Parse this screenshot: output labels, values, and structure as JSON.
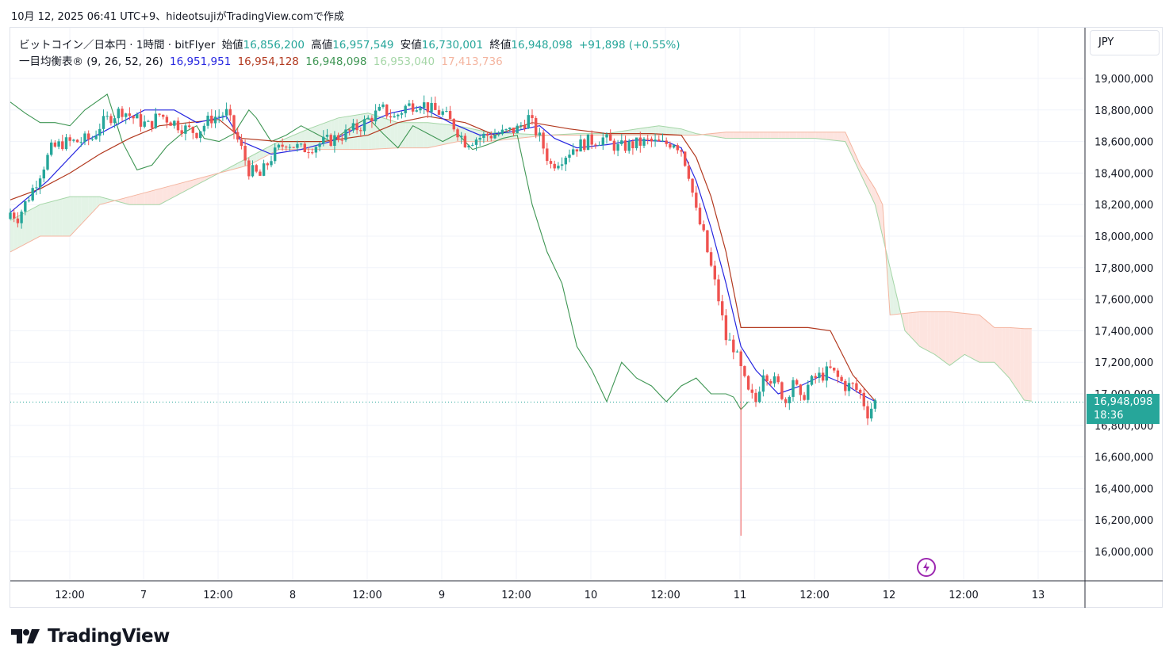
{
  "caption": "10月 12, 2025 06:41 UTC+9、hideotsujiがTradingView.comで作成",
  "legend": {
    "symbol": "ビットコイン／日本円 · 1時間 · bitFlyer",
    "open_label": "始値",
    "open": "16,856,200",
    "high_label": "高値",
    "high": "16,957,549",
    "low_label": "安値",
    "low": "16,730,001",
    "close_label": "終値",
    "close": "16,948,098",
    "change": "+91,898 (+0.55%)",
    "indicator": "一目均衡表® (9, 26, 52, 26)",
    "tenkan": "16,951,951",
    "kijun": "16,954,128",
    "chikou": "16,948,098",
    "senkou_a": "16,953,040",
    "senkou_b": "17,413,736"
  },
  "currency": "JPY",
  "last_price": {
    "price": "16,948,098",
    "countdown": "18:36"
  },
  "brand": "TradingView",
  "colors": {
    "up": "#26a69a",
    "down": "#ef5350",
    "tenkan": "#2727e0",
    "kijun": "#b2391f",
    "chikou": "#3f9654",
    "span_a": "#a5d6a7",
    "span_b": "#f4b5a0",
    "cloud_bull": "#e3f3e6",
    "cloud_bear": "#fde4df",
    "grid": "#f0f3fa",
    "text": "#131722"
  },
  "chart_data": {
    "type": "candlestick",
    "timeframe": "1h",
    "y_ticks": [
      "19,000,000",
      "18,800,000",
      "18,600,000",
      "18,400,000",
      "18,200,000",
      "18,000,000",
      "17,800,000",
      "17,600,000",
      "17,400,000",
      "17,200,000",
      "17,000,000",
      "16,800,000",
      "16,600,000",
      "16,400,000",
      "16,200,000",
      "16,000,000"
    ],
    "x_ticks": [
      "12:00",
      "7",
      "12:00",
      "8",
      "12:00",
      "9",
      "12:00",
      "10",
      "12:00",
      "11",
      "12:00",
      "12",
      "12:00",
      "13"
    ],
    "ylim": [
      15800000,
      19200000
    ],
    "close_path": [
      [
        0,
        18150000
      ],
      [
        2,
        18120000
      ],
      [
        5,
        18250000
      ],
      [
        8,
        18400000
      ],
      [
        11,
        18550000
      ],
      [
        14,
        18590000
      ],
      [
        18,
        18600000
      ],
      [
        22,
        18620000
      ],
      [
        24,
        18700000
      ],
      [
        27,
        18760000
      ],
      [
        30,
        18800000
      ],
      [
        33,
        18750000
      ],
      [
        37,
        18700000
      ],
      [
        40,
        18770000
      ],
      [
        44,
        18720000
      ],
      [
        47,
        18680000
      ],
      [
        50,
        18660000
      ],
      [
        54,
        18750000
      ],
      [
        58,
        18780000
      ],
      [
        62,
        18550000
      ],
      [
        64,
        18420000
      ],
      [
        67,
        18380000
      ],
      [
        70,
        18500000
      ],
      [
        74,
        18600000
      ],
      [
        78,
        18550000
      ],
      [
        82,
        18580000
      ],
      [
        86,
        18610000
      ],
      [
        90,
        18650000
      ],
      [
        94,
        18700000
      ],
      [
        97,
        18760000
      ],
      [
        100,
        18800000
      ],
      [
        103,
        18750000
      ],
      [
        106,
        18820000
      ],
      [
        110,
        18850000
      ],
      [
        113,
        18800000
      ],
      [
        116,
        18780000
      ],
      [
        119,
        18700000
      ],
      [
        122,
        18600000
      ],
      [
        125,
        18620000
      ],
      [
        128,
        18640000
      ],
      [
        132,
        18650000
      ],
      [
        136,
        18680000
      ],
      [
        139,
        18750000
      ],
      [
        142,
        18620000
      ],
      [
        145,
        18450000
      ],
      [
        148,
        18500000
      ],
      [
        151,
        18560000
      ],
      [
        155,
        18600000
      ],
      [
        159,
        18620000
      ],
      [
        163,
        18560000
      ],
      [
        167,
        18580000
      ],
      [
        171,
        18600000
      ],
      [
        175,
        18580000
      ],
      [
        178,
        18600000
      ],
      [
        180,
        18550000
      ],
      [
        182,
        18400000
      ],
      [
        184,
        18150000
      ],
      [
        186,
        18000000
      ],
      [
        188,
        17800000
      ],
      [
        190,
        17600000
      ],
      [
        192,
        17350000
      ],
      [
        194,
        17300000
      ],
      [
        196,
        17150000
      ],
      [
        198,
        17000000
      ],
      [
        200,
        16950000
      ],
      [
        202,
        17150000
      ],
      [
        204,
        17100000
      ],
      [
        206,
        17050000
      ],
      [
        208,
        16950000
      ],
      [
        210,
        17100000
      ],
      [
        212,
        16950000
      ],
      [
        214,
        17050000
      ],
      [
        216,
        17100000
      ],
      [
        218,
        17120000
      ],
      [
        220,
        17150000
      ],
      [
        222,
        17100000
      ],
      [
        224,
        17050000
      ],
      [
        226,
        17050000
      ],
      [
        228,
        17000000
      ],
      [
        230,
        16880000
      ],
      [
        232,
        16948098
      ]
    ],
    "wicks_extreme": [
      {
        "idx": 196,
        "low": 16100000
      }
    ],
    "tenkan_path": [
      [
        0,
        18150000
      ],
      [
        10,
        18350000
      ],
      [
        20,
        18600000
      ],
      [
        28,
        18700000
      ],
      [
        36,
        18800000
      ],
      [
        44,
        18800000
      ],
      [
        50,
        18720000
      ],
      [
        58,
        18760000
      ],
      [
        62,
        18600000
      ],
      [
        70,
        18520000
      ],
      [
        78,
        18550000
      ],
      [
        86,
        18600000
      ],
      [
        94,
        18700000
      ],
      [
        102,
        18780000
      ],
      [
        110,
        18820000
      ],
      [
        118,
        18720000
      ],
      [
        126,
        18640000
      ],
      [
        134,
        18660000
      ],
      [
        142,
        18700000
      ],
      [
        146,
        18620000
      ],
      [
        152,
        18560000
      ],
      [
        160,
        18580000
      ],
      [
        168,
        18610000
      ],
      [
        176,
        18600000
      ],
      [
        180,
        18560000
      ],
      [
        184,
        18350000
      ],
      [
        188,
        18050000
      ],
      [
        192,
        17700000
      ],
      [
        196,
        17300000
      ],
      [
        200,
        17150000
      ],
      [
        206,
        17000000
      ],
      [
        212,
        17050000
      ],
      [
        218,
        17120000
      ],
      [
        224,
        17060000
      ],
      [
        228,
        17000000
      ],
      [
        232,
        16951951
      ]
    ],
    "kijun_path": [
      [
        0,
        18230000
      ],
      [
        8,
        18300000
      ],
      [
        16,
        18400000
      ],
      [
        24,
        18520000
      ],
      [
        32,
        18620000
      ],
      [
        40,
        18700000
      ],
      [
        48,
        18720000
      ],
      [
        56,
        18740000
      ],
      [
        62,
        18620000
      ],
      [
        72,
        18600000
      ],
      [
        84,
        18600000
      ],
      [
        96,
        18640000
      ],
      [
        104,
        18720000
      ],
      [
        112,
        18760000
      ],
      [
        122,
        18720000
      ],
      [
        130,
        18640000
      ],
      [
        140,
        18720000
      ],
      [
        150,
        18680000
      ],
      [
        160,
        18650000
      ],
      [
        172,
        18650000
      ],
      [
        180,
        18640000
      ],
      [
        184,
        18500000
      ],
      [
        188,
        18250000
      ],
      [
        192,
        17900000
      ],
      [
        196,
        17420000
      ],
      [
        204,
        17420000
      ],
      [
        214,
        17420000
      ],
      [
        220,
        17400000
      ],
      [
        226,
        17120000
      ],
      [
        232,
        16954128
      ]
    ],
    "chikou_path": [
      [
        0,
        18850000
      ],
      [
        4,
        18780000
      ],
      [
        8,
        18720000
      ],
      [
        12,
        18720000
      ],
      [
        16,
        18700000
      ],
      [
        20,
        18800000
      ],
      [
        26,
        18900000
      ],
      [
        30,
        18600000
      ],
      [
        34,
        18420000
      ],
      [
        38,
        18450000
      ],
      [
        42,
        18570000
      ],
      [
        46,
        18650000
      ],
      [
        50,
        18700000
      ],
      [
        52,
        18620000
      ],
      [
        56,
        18600000
      ],
      [
        60,
        18650000
      ],
      [
        64,
        18800000
      ],
      [
        66,
        18750000
      ],
      [
        70,
        18600000
      ],
      [
        74,
        18640000
      ],
      [
        78,
        18700000
      ],
      [
        82,
        18650000
      ],
      [
        86,
        18600000
      ],
      [
        92,
        18700000
      ],
      [
        96,
        18750000
      ],
      [
        100,
        18650000
      ],
      [
        104,
        18560000
      ],
      [
        108,
        18700000
      ],
      [
        112,
        18650000
      ],
      [
        116,
        18600000
      ],
      [
        120,
        18650000
      ],
      [
        124,
        18550000
      ],
      [
        128,
        18580000
      ],
      [
        132,
        18620000
      ],
      [
        136,
        18640000
      ],
      [
        140,
        18200000
      ],
      [
        144,
        17900000
      ],
      [
        148,
        17700000
      ],
      [
        152,
        17300000
      ],
      [
        156,
        17150000
      ],
      [
        160,
        16950000
      ],
      [
        164,
        17200000
      ],
      [
        168,
        17100000
      ],
      [
        172,
        17050000
      ],
      [
        176,
        16950000
      ],
      [
        180,
        17050000
      ],
      [
        184,
        17100000
      ],
      [
        188,
        17000000
      ],
      [
        192,
        17000000
      ],
      [
        194,
        16980000
      ],
      [
        196,
        16900000
      ],
      [
        198,
        16950000
      ]
    ],
    "span_a_path": [
      [
        0,
        18100000
      ],
      [
        8,
        18200000
      ],
      [
        16,
        18250000
      ],
      [
        24,
        18250000
      ],
      [
        32,
        18200000
      ],
      [
        40,
        18200000
      ],
      [
        48,
        18300000
      ],
      [
        56,
        18400000
      ],
      [
        64,
        18500000
      ],
      [
        72,
        18600000
      ],
      [
        80,
        18680000
      ],
      [
        88,
        18750000
      ],
      [
        96,
        18780000
      ],
      [
        104,
        18720000
      ],
      [
        112,
        18720000
      ],
      [
        120,
        18700000
      ],
      [
        128,
        18660000
      ],
      [
        136,
        18650000
      ],
      [
        144,
        18640000
      ],
      [
        152,
        18650000
      ],
      [
        160,
        18650000
      ],
      [
        168,
        18680000
      ],
      [
        174,
        18700000
      ],
      [
        180,
        18680000
      ],
      [
        184,
        18650000
      ],
      [
        192,
        18620000
      ],
      [
        200,
        18620000
      ],
      [
        208,
        18620000
      ],
      [
        216,
        18620000
      ],
      [
        224,
        18600000
      ],
      [
        228,
        18400000
      ],
      [
        232,
        18200000
      ],
      [
        236,
        17800000
      ],
      [
        240,
        17400000
      ],
      [
        244,
        17300000
      ],
      [
        248,
        17250000
      ],
      [
        252,
        17180000
      ],
      [
        256,
        17250000
      ],
      [
        260,
        17200000
      ],
      [
        264,
        17200000
      ],
      [
        268,
        17100000
      ],
      [
        272,
        16960000
      ],
      [
        274,
        16953040
      ]
    ],
    "span_b_path": [
      [
        0,
        17900000
      ],
      [
        8,
        18000000
      ],
      [
        16,
        18000000
      ],
      [
        24,
        18200000
      ],
      [
        32,
        18250000
      ],
      [
        40,
        18300000
      ],
      [
        48,
        18350000
      ],
      [
        56,
        18400000
      ],
      [
        64,
        18450000
      ],
      [
        72,
        18550000
      ],
      [
        80,
        18550000
      ],
      [
        88,
        18550000
      ],
      [
        96,
        18550000
      ],
      [
        104,
        18560000
      ],
      [
        112,
        18560000
      ],
      [
        120,
        18600000
      ],
      [
        128,
        18600000
      ],
      [
        136,
        18620000
      ],
      [
        144,
        18640000
      ],
      [
        152,
        18640000
      ],
      [
        160,
        18640000
      ],
      [
        168,
        18640000
      ],
      [
        176,
        18640000
      ],
      [
        184,
        18640000
      ],
      [
        192,
        18660000
      ],
      [
        200,
        18660000
      ],
      [
        208,
        18660000
      ],
      [
        216,
        18660000
      ],
      [
        224,
        18660000
      ],
      [
        228,
        18450000
      ],
      [
        232,
        18300000
      ],
      [
        234,
        18200000
      ],
      [
        236,
        17500000
      ],
      [
        244,
        17520000
      ],
      [
        252,
        17520000
      ],
      [
        260,
        17500000
      ],
      [
        264,
        17420000
      ],
      [
        268,
        17420000
      ],
      [
        272,
        17413736
      ],
      [
        274,
        17413736
      ]
    ]
  }
}
